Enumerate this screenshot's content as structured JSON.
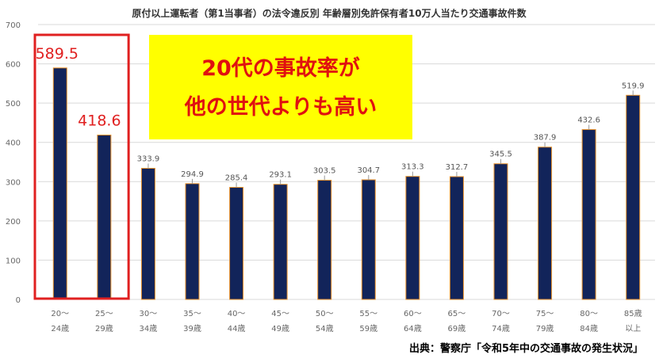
{
  "chart_data": {
    "type": "bar",
    "title": "原付以上運転者（第1当事者）の法令違反別 年齢層別免許保有者10万人当たり交通事故件数",
    "categories": [
      [
        "20〜",
        "24歳"
      ],
      [
        "25〜",
        "29歳"
      ],
      [
        "30〜",
        "34歳"
      ],
      [
        "35〜",
        "39歳"
      ],
      [
        "40〜",
        "44歳"
      ],
      [
        "45〜",
        "49歳"
      ],
      [
        "50〜",
        "54歳"
      ],
      [
        "55〜",
        "59歳"
      ],
      [
        "60〜",
        "64歳"
      ],
      [
        "65〜",
        "69歳"
      ],
      [
        "70〜",
        "74歳"
      ],
      [
        "75〜",
        "79歳"
      ],
      [
        "80〜",
        "84歳"
      ],
      [
        "85歳",
        "以上"
      ]
    ],
    "values": [
      589.5,
      418.6,
      333.9,
      294.9,
      285.4,
      293.1,
      303.5,
      304.7,
      313.3,
      312.7,
      345.5,
      387.9,
      432.6,
      519.9
    ],
    "value_labels": [
      "589.5",
      "418.6",
      "333.9",
      "294.9",
      "285.4",
      "293.1",
      "303.5",
      "304.7",
      "313.3",
      "312.7",
      "345.5",
      "387.9",
      "432.6",
      "519.9"
    ],
    "ylim": [
      0,
      700
    ],
    "yticks": [
      0,
      100,
      200,
      300,
      400,
      500,
      600,
      700
    ],
    "grid": true,
    "highlight_indices": [
      0,
      1
    ],
    "annotation_lines": [
      "20代の事故率が",
      "他の世代よりも高い"
    ],
    "source": "出典：警察庁「令和5年中の交通事故の発生状況」"
  },
  "colors": {
    "bar_fill": "#12245a",
    "bar_edge": "#e8912c",
    "grid": "#d9d9d9",
    "highlight_box": "#e02020",
    "callout_bg": "#ffff00",
    "callout_text": "#e01010"
  }
}
